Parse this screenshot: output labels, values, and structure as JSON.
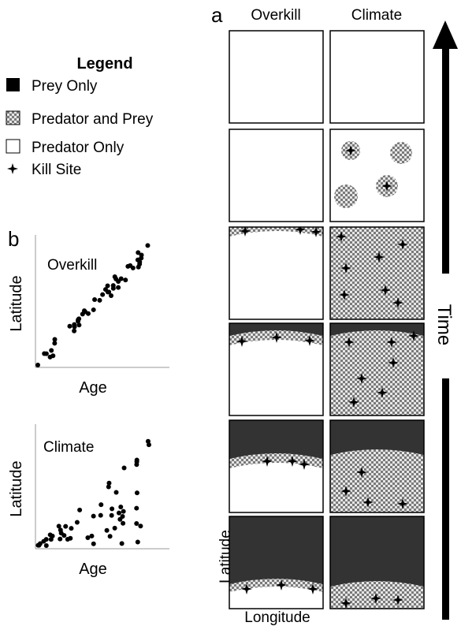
{
  "legend": {
    "title": "Legend",
    "items": [
      "Prey Only",
      "Predator and Prey",
      "Predator Only",
      "Kill Site"
    ]
  },
  "panel_a": {
    "label": "a",
    "columns": [
      "Overkill",
      "Climate"
    ],
    "y_axis": "Latitude",
    "x_axis": "Longitude",
    "time_axis": "Time"
  },
  "panel_b": {
    "label": "b",
    "plots": [
      {
        "title": "Overkill",
        "y_axis": "Latitude",
        "x_axis": "Age"
      },
      {
        "title": "Climate",
        "y_axis": "Latitude",
        "x_axis": "Age"
      }
    ]
  }
}
